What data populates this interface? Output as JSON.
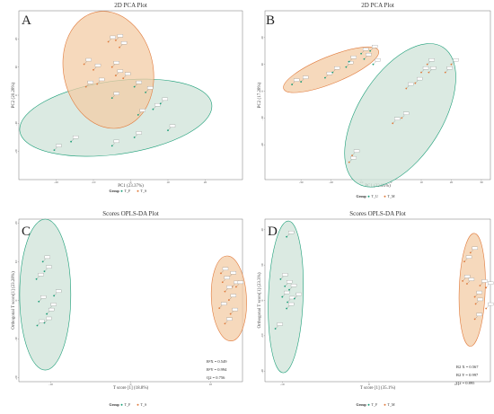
{
  "colors": {
    "groupA": "#1a9e77",
    "groupB": "#e0793a",
    "ellipseA": "#cfe3d8",
    "ellipseB": "#f3cca6"
  },
  "chart_data": [
    {
      "type": "scatter",
      "panel": "A",
      "title": "2D PCA Plot",
      "xlabel": "PC1 (23.37%)",
      "ylabel": "PC2 (20.28%)",
      "xlim": [
        -30,
        30
      ],
      "ylim": [
        -30,
        30
      ],
      "xticks": [
        "-20",
        "-10",
        "0",
        "10",
        "20"
      ],
      "yticks": [
        "-20",
        "-10",
        "0",
        "10",
        "20"
      ],
      "legend_title": "Group",
      "legend": [
        "T_F",
        "T_S"
      ],
      "legend_position": "bottom",
      "series": [
        {
          "name": "T_F",
          "points": [
            [
              -20.5,
              -19.5
            ],
            [
              -16,
              -16.5
            ],
            [
              -5,
              -18
            ],
            [
              1,
              -15
            ],
            [
              2,
              -7
            ],
            [
              -5,
              -1
            ],
            [
              1,
              3
            ],
            [
              6,
              -5
            ],
            [
              8,
              -3
            ],
            [
              10,
              -12.5
            ],
            [
              4,
              1
            ]
          ]
        },
        {
          "name": "T_S",
          "points": [
            [
              -6,
              19
            ],
            [
              -4,
              19.5
            ],
            [
              -3,
              17
            ],
            [
              -12.5,
              11
            ],
            [
              -10,
              9
            ],
            [
              -5,
              10
            ],
            [
              -4,
              7
            ],
            [
              -12,
              3
            ],
            [
              -9,
              4
            ],
            [
              -2,
              6
            ]
          ]
        }
      ]
    },
    {
      "type": "scatter",
      "panel": "B",
      "title": "2D PCA Plot",
      "xlabel": "PC1 (33.95%)",
      "ylabel": "PC2 (17.28%)",
      "xlim": [
        -42,
        33
      ],
      "ylim": [
        -33,
        30
      ],
      "xticks": [
        "-30",
        "-20",
        "-10",
        "0",
        "10",
        "20",
        "30"
      ],
      "yticks": [
        "-20",
        "-10",
        "0",
        "10",
        "20"
      ],
      "legend_title": "Group",
      "legend": [
        "T_U",
        "T_M"
      ],
      "legend_position": "bottom",
      "series": [
        {
          "name": "T_U",
          "points": [
            [
              -33,
              2.5
            ],
            [
              -30,
              3.5
            ],
            [
              -22,
              5
            ],
            [
              -19.5,
              7
            ],
            [
              -15,
              9
            ],
            [
              -14,
              11
            ],
            [
              -10,
              14
            ],
            [
              -7,
              15
            ],
            [
              -6,
              10
            ],
            [
              -9,
              12
            ]
          ]
        },
        {
          "name": "T_M",
          "points": [
            [
              -13,
              -24
            ],
            [
              -14,
              -26.5
            ],
            [
              0.5,
              -12
            ],
            [
              3.5,
              -10
            ],
            [
              5,
              1
            ],
            [
              8,
              3
            ],
            [
              10,
              7
            ],
            [
              12,
              10
            ],
            [
              12.5,
              7
            ],
            [
              18,
              7
            ],
            [
              20,
              10
            ]
          ]
        }
      ]
    },
    {
      "type": "scatter",
      "panel": "C",
      "title": "Scores OPLS-DA Plot",
      "xlabel": "T score [1] (18.8%)",
      "ylabel": "Orthogonal T score[1] (23.28%)",
      "xlim": [
        -14,
        14
      ],
      "ylim": [
        -21,
        21
      ],
      "xticks": [
        "-10",
        "0",
        "10"
      ],
      "yticks": [
        "-20",
        "-10",
        "0",
        "10",
        "20"
      ],
      "legend_title": "Group",
      "legend": [
        "T_F",
        "T_S"
      ],
      "legend_position": "bottom",
      "stats": [
        "R²X = 0.549",
        "R²Y = 0.994",
        "Q2 = 0.756"
      ],
      "series": [
        {
          "name": "T_F",
          "points": [
            [
              -11,
              10
            ],
            [
              -11.8,
              5.5
            ],
            [
              -10.8,
              7.5
            ],
            [
              -9.6,
              1.2
            ],
            [
              -11.5,
              -0.3
            ],
            [
              -10.2,
              -2.2
            ],
            [
              -10.5,
              -3.5
            ],
            [
              -10.8,
              -5.8
            ],
            [
              -11.7,
              -6.5
            ]
          ]
        },
        {
          "name": "T_S",
          "points": [
            [
              11.3,
              7
            ],
            [
              12.3,
              6
            ],
            [
              11.5,
              4.7
            ],
            [
              12.7,
              3.5
            ],
            [
              13.2,
              3.5
            ],
            [
              11.8,
              2.3
            ],
            [
              12.3,
              0.1
            ],
            [
              11.1,
              -2
            ],
            [
              12.5,
              -3.5
            ],
            [
              11.8,
              -6
            ]
          ]
        }
      ]
    },
    {
      "type": "scatter",
      "panel": "D",
      "title": "Scores OPLS-DA Plot",
      "xlabel": "T score [1] (35.1%)",
      "ylabel": "Orthogonal T score[1] (23.3%)",
      "xlim": [
        -12,
        14
      ],
      "ylim": [
        -23,
        23
      ],
      "xticks": [
        "-10",
        "0",
        "10"
      ],
      "yticks": [
        "-20",
        "-10",
        "0",
        "10",
        "20"
      ],
      "legend_title": "Group",
      "legend": [
        "T_F",
        "T_M"
      ],
      "legend_position": "bottom",
      "stats": [
        "R2 X = 0.567",
        "R2 Y = 0.997",
        "Q2 = 0.895"
      ],
      "series": [
        {
          "name": "T_F",
          "points": [
            [
              -9.5,
              18
            ],
            [
              -10.2,
              6
            ],
            [
              -9.7,
              4
            ],
            [
              -9.2,
              3
            ],
            [
              -10,
              1
            ],
            [
              -9.4,
              -0.5
            ],
            [
              -9.5,
              -2.3
            ],
            [
              -8.6,
              0.5
            ],
            [
              -10.8,
              -8
            ]
          ]
        },
        {
          "name": "T_M",
          "points": [
            [
              11.7,
              13.5
            ],
            [
              11,
              11
            ],
            [
              10.8,
              5.5
            ],
            [
              12.8,
              4.2
            ],
            [
              11.3,
              4.7
            ],
            [
              13.5,
              3.6
            ],
            [
              12.2,
              1
            ],
            [
              13.5,
              -2.3
            ],
            [
              12.3,
              -1
            ],
            [
              12.2,
              -5.3
            ]
          ]
        }
      ]
    }
  ]
}
